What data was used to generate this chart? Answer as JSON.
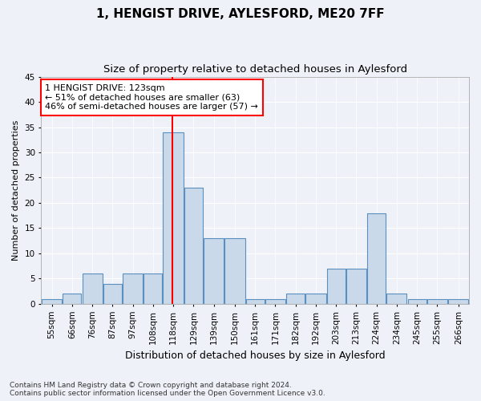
{
  "title": "1, HENGIST DRIVE, AYLESFORD, ME20 7FF",
  "subtitle": "Size of property relative to detached houses in Aylesford",
  "xlabel": "Distribution of detached houses by size in Aylesford",
  "ylabel": "Number of detached properties",
  "bins": [
    "55sqm",
    "66sqm",
    "76sqm",
    "87sqm",
    "97sqm",
    "108sqm",
    "118sqm",
    "129sqm",
    "139sqm",
    "150sqm",
    "161sqm",
    "171sqm",
    "182sqm",
    "192sqm",
    "203sqm",
    "213sqm",
    "224sqm",
    "234sqm",
    "245sqm",
    "255sqm",
    "266sqm"
  ],
  "bin_lefts": [
    55,
    66,
    76,
    87,
    97,
    108,
    118,
    129,
    139,
    150,
    161,
    171,
    182,
    192,
    203,
    213,
    224,
    234,
    245,
    255,
    266
  ],
  "bin_widths": [
    11,
    10,
    11,
    10,
    11,
    10,
    11,
    10,
    11,
    11,
    10,
    11,
    10,
    11,
    10,
    11,
    10,
    11,
    10,
    11,
    11
  ],
  "counts": [
    1,
    2,
    6,
    4,
    6,
    6,
    34,
    23,
    13,
    13,
    1,
    1,
    2,
    2,
    7,
    7,
    18,
    2,
    1,
    1,
    1
  ],
  "bar_color": "#c9d9ea",
  "bar_edge_color": "#5a8fc0",
  "vline_x": 123,
  "vline_color": "red",
  "annotation_text": "1 HENGIST DRIVE: 123sqm\n← 51% of detached houses are smaller (63)\n46% of semi-detached houses are larger (57) →",
  "annotation_box_color": "white",
  "annotation_box_edge": "red",
  "ylim": [
    0,
    45
  ],
  "yticks": [
    0,
    5,
    10,
    15,
    20,
    25,
    30,
    35,
    40,
    45
  ],
  "bg_color": "#eef2f8",
  "grid_color": "#ffffff",
  "footnote": "Contains HM Land Registry data © Crown copyright and database right 2024.\nContains public sector information licensed under the Open Government Licence v3.0.",
  "title_fontsize": 11,
  "subtitle_fontsize": 9.5,
  "xlabel_fontsize": 9,
  "ylabel_fontsize": 8,
  "tick_fontsize": 7.5,
  "annot_fontsize": 8,
  "footnote_fontsize": 6.5
}
